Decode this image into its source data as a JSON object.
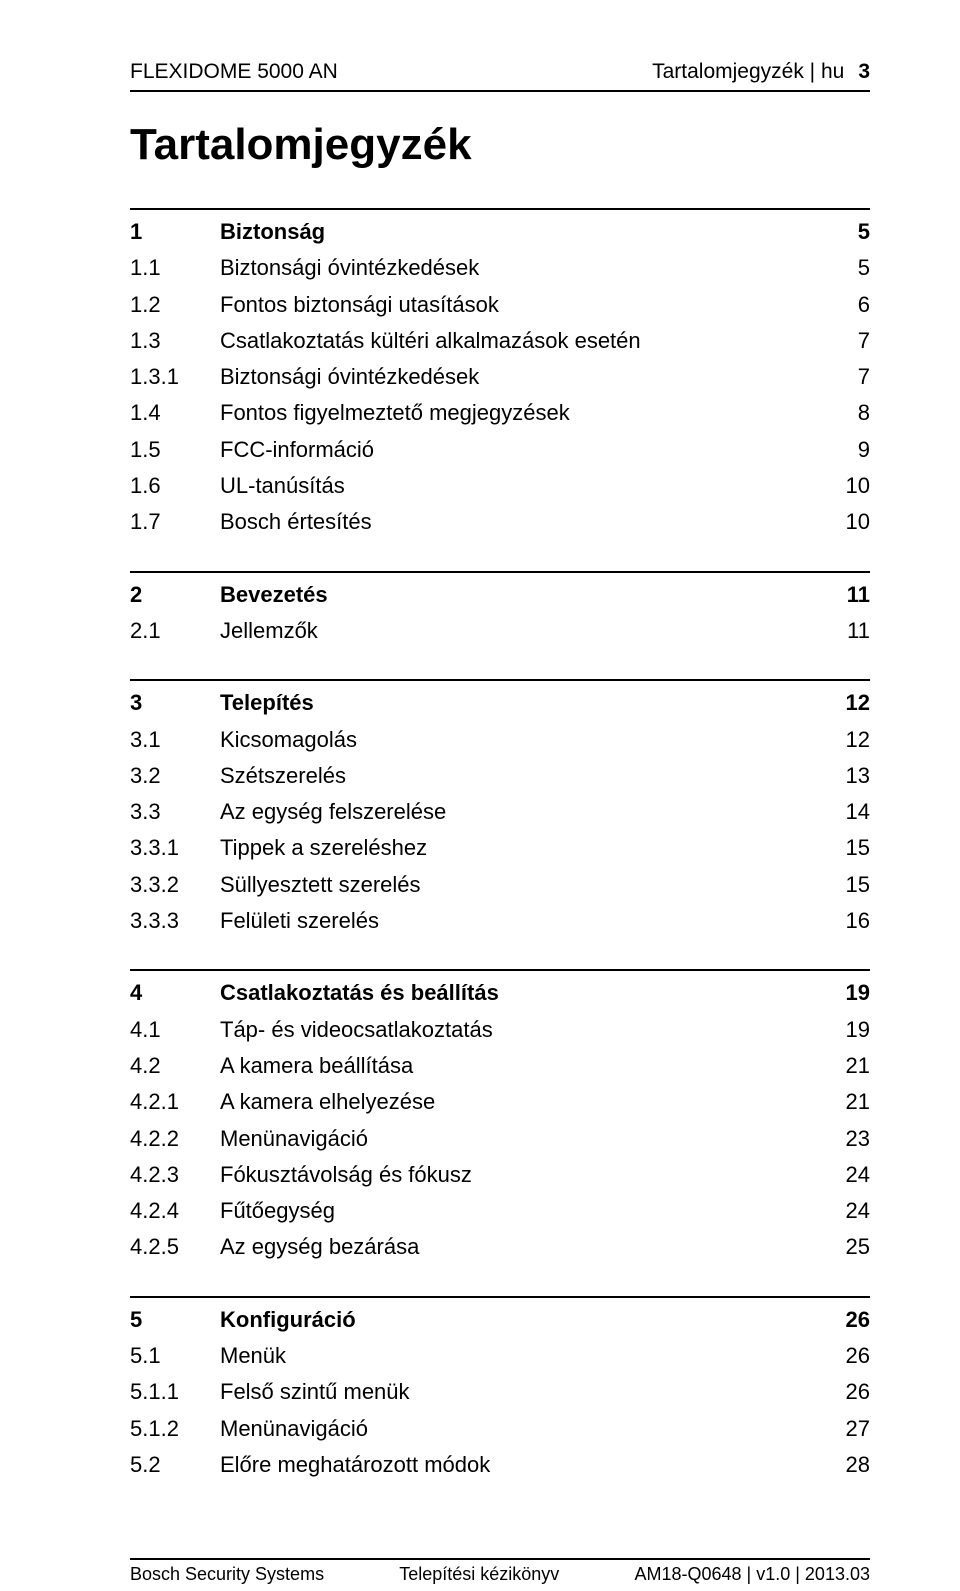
{
  "header": {
    "left": "FLEXIDOME 5000 AN",
    "right_label": "Tartalomjegyzék | hu",
    "page": "3"
  },
  "title": "Tartalomjegyzék",
  "sections": [
    {
      "head": {
        "num": "1",
        "label": "Biztonság",
        "pg": "5"
      },
      "items": [
        {
          "num": "1.1",
          "label": "Biztonsági óvintézkedések",
          "pg": "5"
        },
        {
          "num": "1.2",
          "label": "Fontos biztonsági utasítások",
          "pg": "6"
        },
        {
          "num": "1.3",
          "label": "Csatlakoztatás kültéri alkalmazások esetén",
          "pg": "7"
        },
        {
          "num": "1.3.1",
          "label": "Biztonsági óvintézkedések",
          "pg": "7"
        },
        {
          "num": "1.4",
          "label": "Fontos figyelmeztető megjegyzések",
          "pg": "8"
        },
        {
          "num": "1.5",
          "label": "FCC-információ",
          "pg": "9"
        },
        {
          "num": "1.6",
          "label": "UL-tanúsítás",
          "pg": "10"
        },
        {
          "num": "1.7",
          "label": "Bosch értesítés",
          "pg": "10"
        }
      ]
    },
    {
      "head": {
        "num": "2",
        "label": "Bevezetés",
        "pg": "11"
      },
      "items": [
        {
          "num": "2.1",
          "label": "Jellemzők",
          "pg": "11"
        }
      ]
    },
    {
      "head": {
        "num": "3",
        "label": "Telepítés",
        "pg": "12"
      },
      "items": [
        {
          "num": "3.1",
          "label": "Kicsomagolás",
          "pg": "12"
        },
        {
          "num": "3.2",
          "label": "Szétszerelés",
          "pg": "13"
        },
        {
          "num": "3.3",
          "label": "Az egység felszerelése",
          "pg": "14"
        },
        {
          "num": "3.3.1",
          "label": "Tippek a szereléshez",
          "pg": "15"
        },
        {
          "num": "3.3.2",
          "label": "Süllyesztett szerelés",
          "pg": "15"
        },
        {
          "num": "3.3.3",
          "label": "Felületi szerelés",
          "pg": "16"
        }
      ]
    },
    {
      "head": {
        "num": "4",
        "label": "Csatlakoztatás és beállítás",
        "pg": "19"
      },
      "items": [
        {
          "num": "4.1",
          "label": "Táp- és videocsatlakoztatás",
          "pg": "19"
        },
        {
          "num": "4.2",
          "label": "A kamera beállítása",
          "pg": "21"
        },
        {
          "num": "4.2.1",
          "label": "A kamera elhelyezése",
          "pg": "21"
        },
        {
          "num": "4.2.2",
          "label": "Menünavigáció",
          "pg": "23"
        },
        {
          "num": "4.2.3",
          "label": "Fókusztávolság és fókusz",
          "pg": "24"
        },
        {
          "num": "4.2.4",
          "label": "Fűtőegység",
          "pg": "24"
        },
        {
          "num": "4.2.5",
          "label": "Az egység bezárása",
          "pg": "25"
        }
      ]
    },
    {
      "head": {
        "num": "5",
        "label": "Konfiguráció",
        "pg": "26"
      },
      "items": [
        {
          "num": "5.1",
          "label": "Menük",
          "pg": "26"
        },
        {
          "num": "5.1.1",
          "label": "Felső szintű menük",
          "pg": "26"
        },
        {
          "num": "5.1.2",
          "label": "Menünavigáció",
          "pg": "27"
        },
        {
          "num": "5.2",
          "label": "Előre meghatározott módok",
          "pg": "28"
        }
      ]
    }
  ],
  "footer": {
    "left": "Bosch Security Systems",
    "center": "Telepítési kézikönyv",
    "right": "AM18-Q0648 | v1.0 | 2013.03"
  }
}
